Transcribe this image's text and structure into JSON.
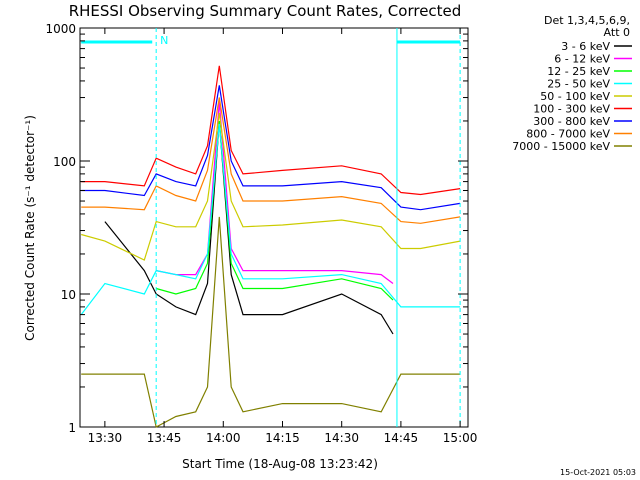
{
  "chart_data": {
    "type": "line",
    "title": "RHESSI Observing Summary Count Rates, Corrected",
    "xlabel": "Start Time (18-Aug-08 13:23:42)",
    "ylabel": "Corrected Count Rate (s⁻¹ detector⁻¹)",
    "y_scale": "log",
    "ylim": [
      1,
      1000
    ],
    "xlim": [
      "13:23:42",
      "15:02:00"
    ],
    "x_ticks": [
      "13:30",
      "13:45",
      "14:00",
      "14:15",
      "14:30",
      "14:45",
      "15:00"
    ],
    "y_ticks": [
      "1",
      "10",
      "100",
      "1000"
    ],
    "legend_header": [
      "Det 1,3,4,5,6,9,",
      "Att 0"
    ],
    "legend_position": "top-right, outside plot",
    "flag_label": "N",
    "flag_color": "#00ffff",
    "timestamp": "15-Oct-2021 05:03",
    "series": [
      {
        "name": "3 - 6 keV",
        "color": "#000000",
        "x": [
          "13:30",
          "13:40",
          "13:43",
          "13:48",
          "13:53",
          "13:56",
          "13:59",
          "14:02",
          "14:05",
          "14:15",
          "14:30",
          "14:40",
          "14:43"
        ],
        "y": [
          35,
          15,
          10,
          8,
          7,
          12,
          200,
          14,
          7,
          7,
          10,
          7,
          5
        ]
      },
      {
        "name": "6 - 12 keV",
        "color": "#ff00ff",
        "x": [
          "13:43",
          "13:48",
          "13:53",
          "13:56",
          "13:59",
          "14:02",
          "14:05",
          "14:15",
          "14:30",
          "14:40",
          "14:43"
        ],
        "y": [
          15,
          14,
          14,
          20,
          280,
          22,
          15,
          15,
          15,
          14,
          12
        ]
      },
      {
        "name": "12 - 25 keV",
        "color": "#00ff00",
        "x": [
          "13:43",
          "13:48",
          "13:53",
          "13:56",
          "13:59",
          "14:02",
          "14:05",
          "14:15",
          "14:30",
          "14:40",
          "14:43"
        ],
        "y": [
          11,
          10,
          11,
          17,
          200,
          17,
          11,
          11,
          13,
          11,
          9
        ]
      },
      {
        "name": "25 - 50 keV",
        "color": "#00ffff",
        "x": [
          "13:24",
          "13:30",
          "13:40",
          "13:43",
          "13:48",
          "13:53",
          "13:56",
          "13:59",
          "14:02",
          "14:05",
          "14:15",
          "14:30",
          "14:40",
          "14:45",
          "14:50",
          "15:00"
        ],
        "y": [
          7,
          12,
          10,
          15,
          14,
          13,
          20,
          190,
          20,
          13,
          13,
          14,
          12,
          8,
          8,
          8
        ]
      },
      {
        "name": "50 - 100 keV",
        "color": "#cccc00",
        "x": [
          "13:24",
          "13:30",
          "13:40",
          "13:43",
          "13:48",
          "13:53",
          "13:56",
          "13:59",
          "14:02",
          "14:05",
          "14:15",
          "14:30",
          "14:40",
          "14:45",
          "14:50",
          "15:00"
        ],
        "y": [
          28,
          25,
          18,
          35,
          32,
          32,
          50,
          230,
          50,
          32,
          33,
          36,
          32,
          22,
          22,
          25
        ]
      },
      {
        "name": "100 - 300 keV",
        "color": "#ff0000",
        "x": [
          "13:24",
          "13:30",
          "13:40",
          "13:43",
          "13:48",
          "13:53",
          "13:56",
          "13:59",
          "14:02",
          "14:05",
          "14:15",
          "14:30",
          "14:40",
          "14:45",
          "14:50",
          "15:00"
        ],
        "y": [
          70,
          70,
          65,
          105,
          90,
          80,
          130,
          520,
          120,
          80,
          85,
          92,
          80,
          58,
          56,
          62
        ]
      },
      {
        "name": "300 - 800 keV",
        "color": "#0000ff",
        "x": [
          "13:24",
          "13:30",
          "13:40",
          "13:43",
          "13:48",
          "13:53",
          "13:56",
          "13:59",
          "14:02",
          "14:05",
          "14:15",
          "14:30",
          "14:40",
          "14:45",
          "14:50",
          "15:00"
        ],
        "y": [
          60,
          60,
          55,
          80,
          70,
          65,
          110,
          370,
          100,
          65,
          65,
          70,
          63,
          45,
          43,
          48
        ]
      },
      {
        "name": "800 - 7000 keV",
        "color": "#ff8000",
        "x": [
          "13:24",
          "13:30",
          "13:40",
          "13:43",
          "13:48",
          "13:53",
          "13:56",
          "13:59",
          "14:02",
          "14:05",
          "14:15",
          "14:30",
          "14:40",
          "14:45",
          "14:50",
          "15:00"
        ],
        "y": [
          45,
          45,
          43,
          65,
          55,
          50,
          85,
          300,
          80,
          50,
          50,
          54,
          48,
          35,
          34,
          38
        ]
      },
      {
        "name": "7000 - 15000 keV",
        "color": "#808000",
        "x": [
          "13:24",
          "13:30",
          "13:40",
          "13:43",
          "13:48",
          "13:53",
          "13:56",
          "13:59",
          "14:02",
          "14:05",
          "14:15",
          "14:30",
          "14:40",
          "14:45",
          "14:50",
          "15:00"
        ],
        "y": [
          2.5,
          2.5,
          2.5,
          1,
          1.2,
          1.3,
          2,
          38,
          2,
          1.3,
          1.5,
          1.5,
          1.3,
          2.5,
          2.5,
          2.5
        ]
      }
    ]
  }
}
